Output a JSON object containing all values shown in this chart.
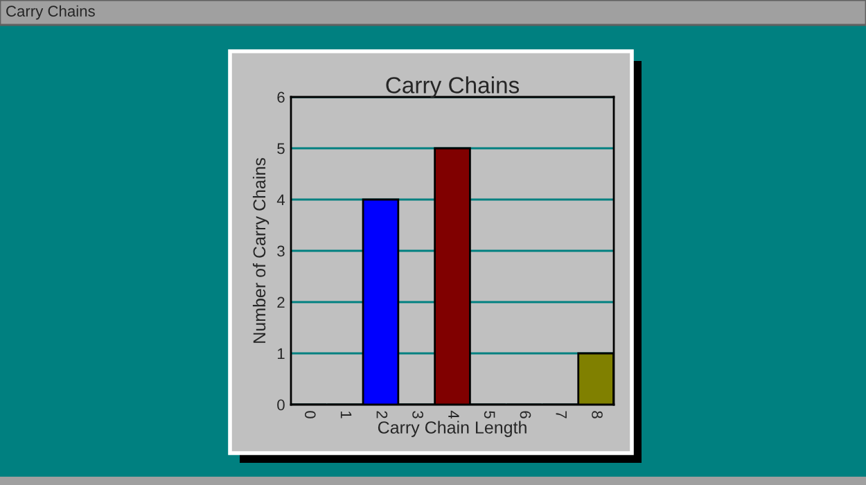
{
  "chart_data": {
    "type": "bar",
    "title": "Carry Chains",
    "xlabel": "Carry Chain Length",
    "ylabel": "Number of Carry Chains",
    "annotations": [
      "Carry Chains"
    ],
    "categories": [
      "0",
      "1",
      "2",
      "3",
      "4",
      "5",
      "6",
      "7",
      "8"
    ],
    "values": [
      0,
      0,
      4,
      0,
      5,
      0,
      0,
      0,
      1
    ],
    "colors": [
      "#c0c0c0",
      "#c0c0c0",
      "#0000ff",
      "#c0c0c0",
      "#800000",
      "#c0c0c0",
      "#c0c0c0",
      "#c0c0c0",
      "#808000"
    ],
    "ylim": [
      0,
      6
    ],
    "yticks": [
      0,
      1,
      2,
      3,
      4,
      5,
      6
    ],
    "grid": "y"
  }
}
